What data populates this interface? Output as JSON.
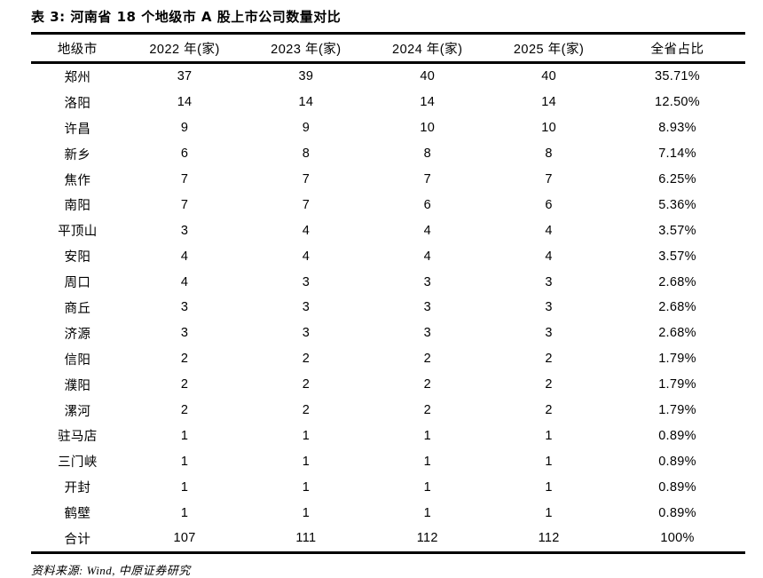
{
  "page": {
    "title": "表 3: 河南省 18 个地级市 A 股上市公司数量对比",
    "source": "资料来源: Wind, 中原证券研究"
  },
  "table": {
    "columns": [
      "地级市",
      "2022 年(家)",
      "2023 年(家)",
      "2024 年(家)",
      "2025 年(家)",
      "全省占比"
    ],
    "rows": [
      [
        "郑州",
        "37",
        "39",
        "40",
        "40",
        "35.71%"
      ],
      [
        "洛阳",
        "14",
        "14",
        "14",
        "14",
        "12.50%"
      ],
      [
        "许昌",
        "9",
        "9",
        "10",
        "10",
        "8.93%"
      ],
      [
        "新乡",
        "6",
        "8",
        "8",
        "8",
        "7.14%"
      ],
      [
        "焦作",
        "7",
        "7",
        "7",
        "7",
        "6.25%"
      ],
      [
        "南阳",
        "7",
        "7",
        "6",
        "6",
        "5.36%"
      ],
      [
        "平顶山",
        "3",
        "4",
        "4",
        "4",
        "3.57%"
      ],
      [
        "安阳",
        "4",
        "4",
        "4",
        "4",
        "3.57%"
      ],
      [
        "周口",
        "4",
        "3",
        "3",
        "3",
        "2.68%"
      ],
      [
        "商丘",
        "3",
        "3",
        "3",
        "3",
        "2.68%"
      ],
      [
        "济源",
        "3",
        "3",
        "3",
        "3",
        "2.68%"
      ],
      [
        "信阳",
        "2",
        "2",
        "2",
        "2",
        "1.79%"
      ],
      [
        "濮阳",
        "2",
        "2",
        "2",
        "2",
        "1.79%"
      ],
      [
        "漯河",
        "2",
        "2",
        "2",
        "2",
        "1.79%"
      ],
      [
        "驻马店",
        "1",
        "1",
        "1",
        "1",
        "0.89%"
      ],
      [
        "三门峡",
        "1",
        "1",
        "1",
        "1",
        "0.89%"
      ],
      [
        "开封",
        "1",
        "1",
        "1",
        "1",
        "0.89%"
      ],
      [
        "鹤壁",
        "1",
        "1",
        "1",
        "1",
        "0.89%"
      ],
      [
        "合计",
        "107",
        "111",
        "112",
        "112",
        "100%"
      ]
    ]
  },
  "colors": {
    "text": "#000000",
    "background": "#ffffff",
    "rule": "#000000"
  }
}
